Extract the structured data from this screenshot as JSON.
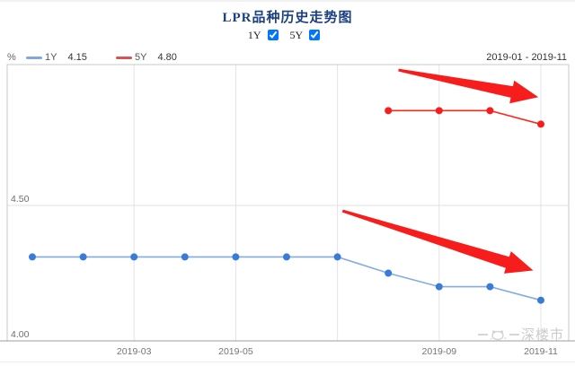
{
  "title": "LPR品种历史走势图",
  "controls": {
    "items": [
      {
        "label": "1Y",
        "checked": true
      },
      {
        "label": "5Y",
        "checked": true
      }
    ]
  },
  "legend": {
    "unit": "%",
    "series": [
      {
        "name": "1Y",
        "value": "4.15",
        "dash_color": "#7fa8dc"
      },
      {
        "name": "5Y",
        "value": "4.80",
        "dash_color": "#d9534f"
      }
    ],
    "date_range": "2019-01 - 2019-11"
  },
  "chart_data": {
    "type": "line",
    "title": "LPR品种历史走势图",
    "ylabel": "%",
    "ylim": [
      4.0,
      5.02
    ],
    "grid": true,
    "x": [
      "2019-01",
      "2019-02",
      "2019-03",
      "2019-04",
      "2019-05",
      "2019-06",
      "2019-07",
      "2019-08",
      "2019-09",
      "2019-10",
      "2019-11"
    ],
    "series": [
      {
        "name": "1Y",
        "line_color": "#85abe3",
        "point_color": "#3a7bd8",
        "values": [
          4.31,
          4.31,
          4.31,
          4.31,
          4.31,
          4.31,
          4.31,
          4.25,
          4.2,
          4.2,
          4.15
        ]
      },
      {
        "name": "5Y",
        "line_color": "#f82A22",
        "point_color": "#f81d1d",
        "values": [
          null,
          null,
          null,
          null,
          null,
          null,
          null,
          4.85,
          4.85,
          4.85,
          4.8
        ]
      }
    ],
    "yticks": [
      {
        "value": 4.5,
        "label": "4.50"
      },
      {
        "value": 4.0,
        "label": "4.00"
      }
    ],
    "grid_month_indices": [
      2,
      4,
      6,
      8,
      10
    ],
    "xticks": [
      {
        "index": 2,
        "label": "2019-03"
      },
      {
        "index": 4,
        "label": "2019-05"
      },
      {
        "index": 8,
        "label": "2019-09"
      },
      {
        "index": 10,
        "label": "2019-11"
      }
    ],
    "annotations": [
      {
        "type": "arrow",
        "color": "#f81d1d",
        "from_month": 7.2,
        "from_value": 5.0,
        "to_month": 9.95,
        "to_value": 4.9
      },
      {
        "type": "arrow",
        "color": "#f81d1d",
        "from_month": 6.1,
        "from_value": 4.48,
        "to_month": 9.85,
        "to_value": 4.26
      }
    ]
  },
  "watermark": {
    "icon": "mascot-icon",
    "text": "深楼市"
  }
}
